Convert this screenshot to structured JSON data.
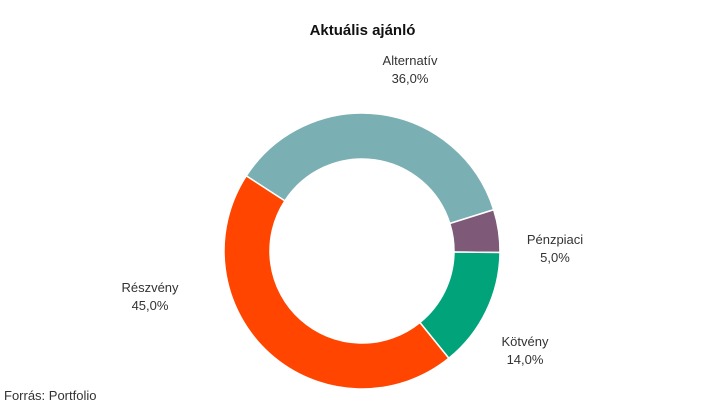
{
  "chart_data": {
    "type": "pie",
    "variant": "donut",
    "title": "Aktuális ajánló",
    "slices": [
      {
        "label": "Alternatív",
        "value": 36.0,
        "value_label": "36,0%",
        "color": "#7aafb4"
      },
      {
        "label": "Pénzpiaci",
        "value": 5.0,
        "value_label": "5,0%",
        "color": "#7e5a78"
      },
      {
        "label": "Kötvény",
        "value": 14.0,
        "value_label": "14,0%",
        "color": "#00a37a"
      },
      {
        "label": "Részvény",
        "value": 45.0,
        "value_label": "45,0%",
        "color": "#ff4500"
      }
    ],
    "source": "Forrás: Portfolio"
  }
}
